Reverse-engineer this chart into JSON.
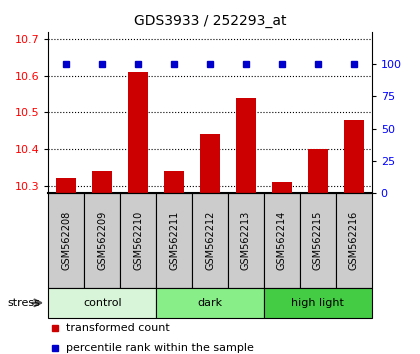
{
  "title": "GDS3933 / 252293_at",
  "samples": [
    "GSM562208",
    "GSM562209",
    "GSM562210",
    "GSM562211",
    "GSM562212",
    "GSM562213",
    "GSM562214",
    "GSM562215",
    "GSM562216"
  ],
  "bar_values": [
    10.32,
    10.34,
    10.61,
    10.34,
    10.44,
    10.54,
    10.31,
    10.4,
    10.48
  ],
  "percentile_values": [
    100,
    100,
    100,
    100,
    100,
    100,
    100,
    100,
    100
  ],
  "ylim_left": [
    10.28,
    10.72
  ],
  "ylim_right": [
    0,
    125
  ],
  "yticks_left": [
    10.3,
    10.4,
    10.5,
    10.6,
    10.7
  ],
  "yticks_right": [
    0,
    25,
    50,
    75,
    100
  ],
  "bar_color": "#cc0000",
  "dot_color": "#0000cc",
  "groups": [
    {
      "label": "control",
      "start": 0,
      "end": 3,
      "color": "#d9f5d9"
    },
    {
      "label": "dark",
      "start": 3,
      "end": 6,
      "color": "#88ee88"
    },
    {
      "label": "high light",
      "start": 6,
      "end": 9,
      "color": "#44cc44"
    }
  ],
  "stress_label": "stress",
  "legend_bar_label": "transformed count",
  "legend_dot_label": "percentile rank within the sample",
  "background_color": "#ffffff",
  "sample_bg_color": "#cccccc"
}
